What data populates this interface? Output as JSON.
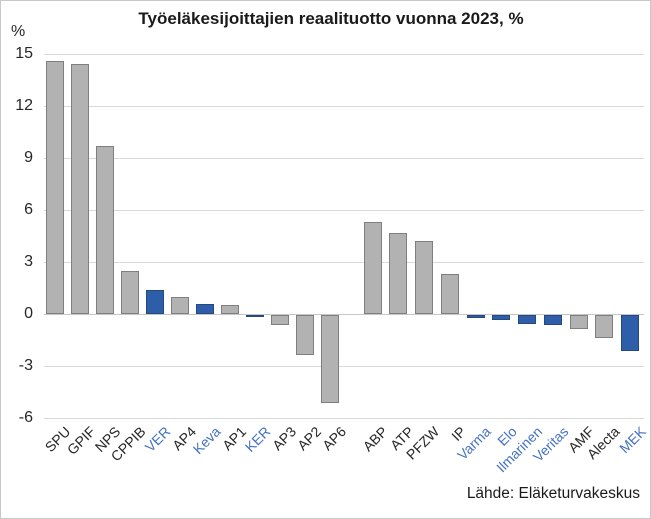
{
  "title": "Työeläkesijoittajien reaalituotto vuonna 2023, %",
  "y_axis_unit": "%",
  "source": "Lähde: Eläketurvakeskus",
  "colors": {
    "bar_default_fill": "#b2b2b2",
    "bar_default_border": "#7f7f7f",
    "bar_highlight_fill": "#2e5ea9",
    "bar_highlight_border": "#24497f",
    "xlabel_default": "#262626",
    "xlabel_highlight": "#4472c4",
    "gridline": "#d9d9d9",
    "zero_line": "#c6c6c6",
    "title_text": "#1a1a1a"
  },
  "chart_data": {
    "type": "bar",
    "title": "Työeläkesijoittajien reaalituotto vuonna 2023, %",
    "xlabel": "",
    "ylabel": "%",
    "ylim": [
      -6,
      15
    ],
    "yticks": [
      15,
      12,
      9,
      6,
      3,
      0,
      -3,
      -6
    ],
    "grid": true,
    "legend": "none",
    "highlighted_bars_are_blue": true,
    "groups": [
      {
        "bars": [
          {
            "label": "SPU",
            "value": 14.6,
            "highlighted": false
          },
          {
            "label": "GPIF",
            "value": 14.4,
            "highlighted": false
          },
          {
            "label": "NPS",
            "value": 9.7,
            "highlighted": false
          },
          {
            "label": "CPPIB",
            "value": 2.5,
            "highlighted": false
          },
          {
            "label": "VER",
            "value": 1.4,
            "highlighted": true
          },
          {
            "label": "AP4",
            "value": 1.0,
            "highlighted": false
          },
          {
            "label": "Keva",
            "value": 0.6,
            "highlighted": true
          },
          {
            "label": "AP1",
            "value": 0.5,
            "highlighted": false
          },
          {
            "label": "KER",
            "value": -0.1,
            "highlighted": true
          },
          {
            "label": "AP3",
            "value": -0.6,
            "highlighted": false
          },
          {
            "label": "AP2",
            "value": -2.3,
            "highlighted": false
          },
          {
            "label": "AP6",
            "value": -5.1,
            "highlighted": false
          }
        ]
      },
      {
        "bars": [
          {
            "label": "ABP",
            "value": 5.3,
            "highlighted": false
          },
          {
            "label": "ATP",
            "value": 4.7,
            "highlighted": false
          },
          {
            "label": "PFZW",
            "value": 4.2,
            "highlighted": false
          },
          {
            "label": "IP",
            "value": 2.3,
            "highlighted": false
          },
          {
            "label": "Varma",
            "value": -0.2,
            "highlighted": true
          },
          {
            "label": "Elo",
            "value": -0.3,
            "highlighted": true
          },
          {
            "label": "Ilmarinen",
            "value": -0.5,
            "highlighted": true
          },
          {
            "label": "Veritas",
            "value": -0.6,
            "highlighted": true
          },
          {
            "label": "AMF",
            "value": -0.8,
            "highlighted": false
          },
          {
            "label": "Alecta",
            "value": -1.3,
            "highlighted": false
          },
          {
            "label": "MEK",
            "value": -2.1,
            "highlighted": true
          }
        ]
      }
    ]
  }
}
